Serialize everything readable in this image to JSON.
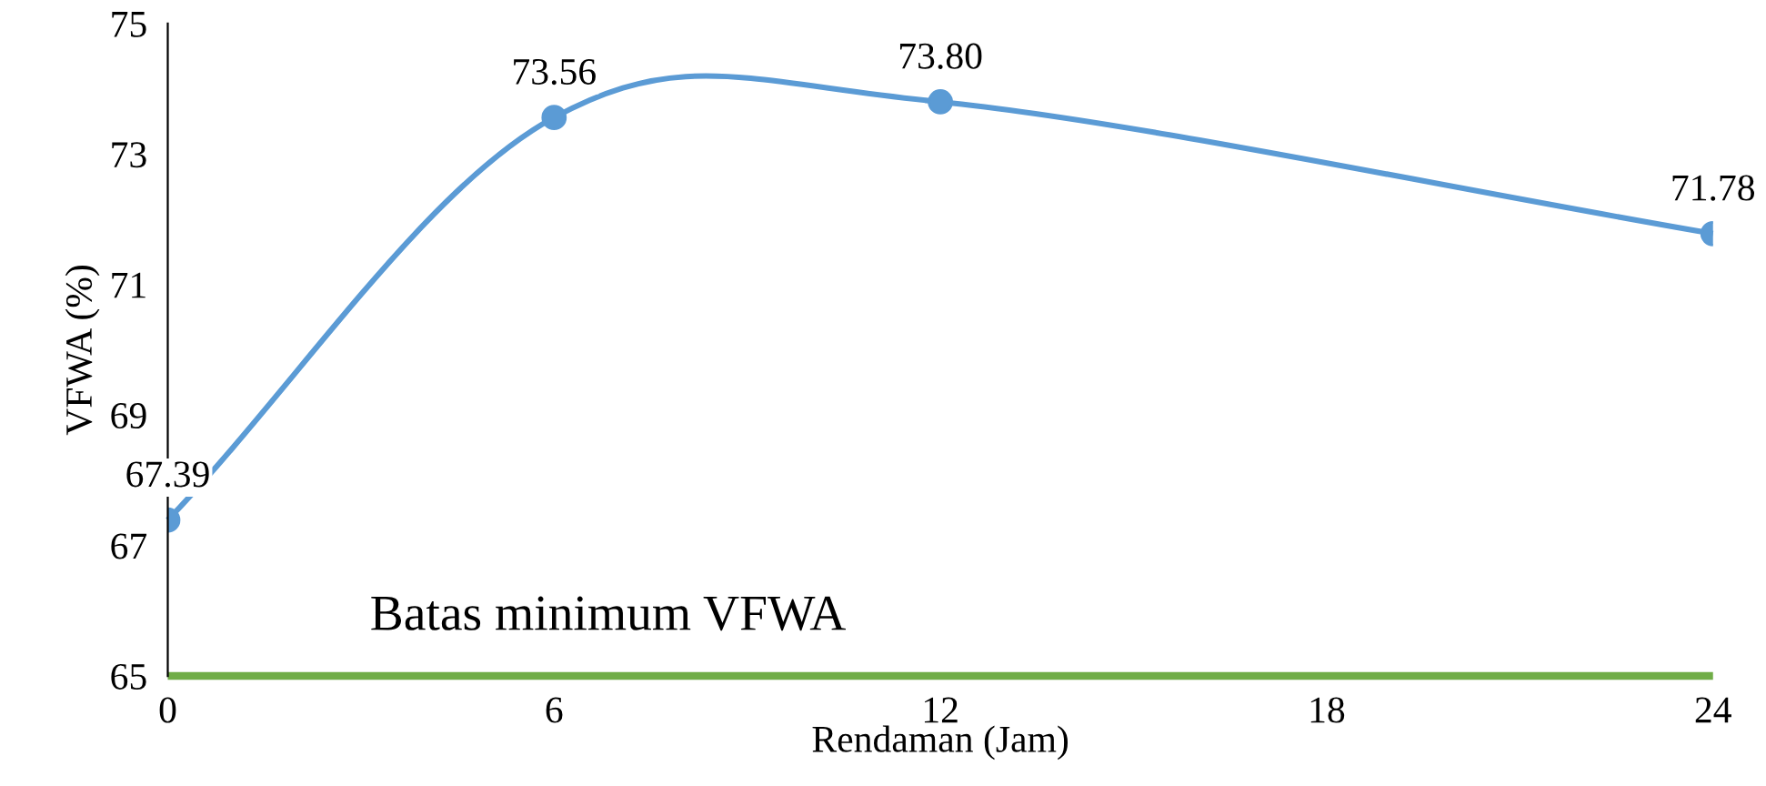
{
  "chart_data": {
    "type": "line",
    "xlabel": "Rendaman (Jam)",
    "ylabel": "VFWA (%)",
    "x": [
      0,
      6,
      12,
      24
    ],
    "series": [
      {
        "color": "#5b9bd5",
        "values": [
          67.39,
          73.56,
          73.8,
          71.78
        ],
        "value_labels": [
          "67.39",
          "73.56",
          "73.80",
          "71.78"
        ]
      },
      {
        "name": "Batas minimum VFWA",
        "color": "#70ad47",
        "values": [
          65,
          65,
          65,
          65
        ],
        "marker": "none"
      }
    ],
    "xlim": [
      0,
      24
    ],
    "xticks": [
      0,
      6,
      12,
      18,
      24
    ],
    "ylim": [
      65,
      75
    ],
    "yticks": [
      65,
      67,
      69,
      71,
      73,
      75
    ],
    "marker": "circle",
    "grid": false,
    "legend": false
  }
}
